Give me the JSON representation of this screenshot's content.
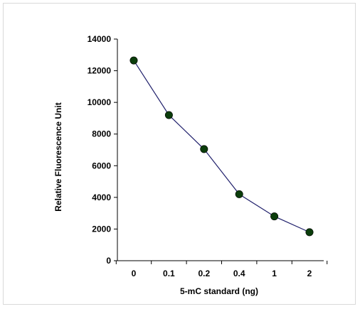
{
  "chart_data": {
    "type": "line",
    "title": "",
    "xlabel": "5-mC standard (ng)",
    "ylabel": "Relative Fluorescence Unit",
    "categories": [
      "0",
      "0.1",
      "0.2",
      "0.4",
      "1",
      "2"
    ],
    "series": [
      {
        "values": [
          12650,
          9200,
          7050,
          4200,
          2800,
          1800
        ]
      }
    ],
    "ylim": [
      0,
      14000
    ],
    "yticks": [
      0,
      2000,
      4000,
      6000,
      8000,
      10000,
      12000,
      14000
    ],
    "grid": false,
    "legend": "none",
    "colors": {
      "line": "#1f1f6b",
      "marker": "#0b3d0b",
      "axis": "#000000",
      "frame": "#d9d9d9"
    }
  }
}
